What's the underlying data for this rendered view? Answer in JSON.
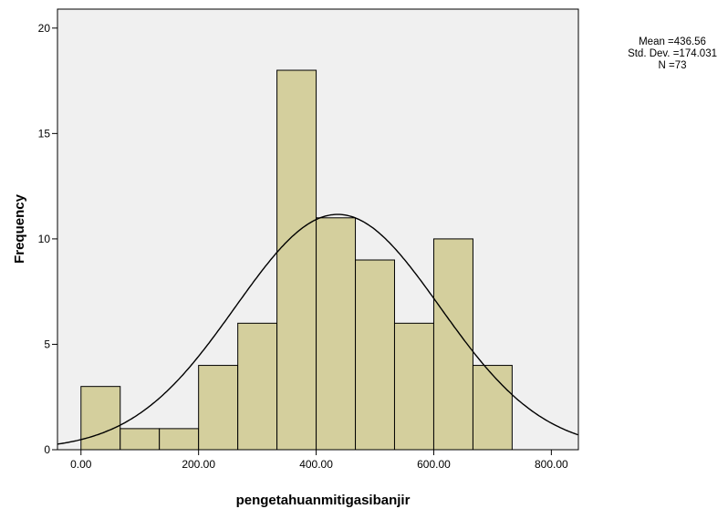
{
  "chart_data": {
    "type": "bar",
    "subtype": "histogram-with-normal-curve",
    "xlabel": "pengetahuanmitigasibanjir",
    "ylabel": "Frequency",
    "xlim": [
      -40,
      846
    ],
    "ylim": [
      0,
      20.9
    ],
    "x_ticks": [
      0,
      200,
      400,
      600,
      800
    ],
    "x_tick_labels": [
      "0.00",
      "200.00",
      "400.00",
      "600.00",
      "800.00"
    ],
    "y_ticks": [
      0,
      5,
      10,
      15,
      20
    ],
    "y_tick_labels": [
      "0",
      "5",
      "10",
      "15",
      "20"
    ],
    "bin_edges": [
      0,
      66.7,
      133.3,
      200,
      266.7,
      333.3,
      400,
      466.7,
      533.3,
      600,
      666.7,
      733.3
    ],
    "values": [
      3,
      1,
      1,
      4,
      6,
      18,
      11,
      9,
      6,
      10,
      4
    ],
    "normal_curve": {
      "mean": 436.56,
      "sd": 174.031,
      "n": 73
    },
    "grid": false,
    "colors": {
      "bar_fill": "#d4cf9d",
      "bar_stroke": "#000000",
      "plot_bg": "#f0f0f0",
      "curve": "#000000"
    }
  },
  "stats": {
    "mean_text": "Mean =436.56",
    "sd_text": "Std. Dev. =174.031",
    "n_text": "N =73"
  }
}
